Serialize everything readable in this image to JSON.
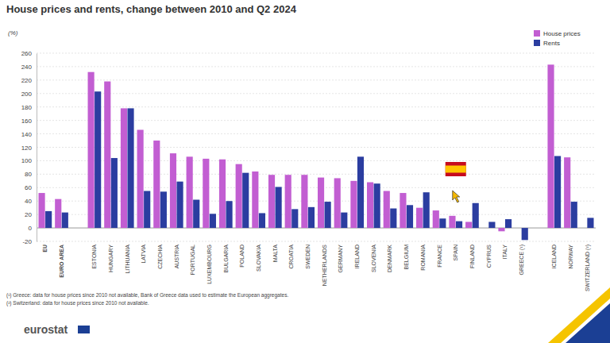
{
  "chart_data": {
    "type": "bar",
    "title": "House prices and rents, change between 2010 and Q2 2024",
    "y_label": "(%)",
    "categories": [
      "EU",
      "EURO AREA",
      null,
      "ESTONIA",
      "HUNGARY",
      "LITHUANIA",
      "LATVIA",
      "CZECHIA",
      "AUSTRIA",
      "PORTUGAL",
      "LUXEMBOURG",
      "BULGARIA",
      "POLAND",
      "SLOVAKIA",
      "MALTA",
      "CROATIA",
      "SWEDEN",
      "NETHERLANDS",
      "GERMANY",
      "IRELAND",
      "SLOVENIA",
      "DENMARK",
      "BELGIUM",
      "ROMANIA",
      "FRANCE",
      "SPAIN",
      "FINLAND",
      "CYPRUS",
      "ITALY",
      "GREECE (¹)",
      null,
      "ICELAND",
      "NORWAY",
      "SWITZERLAND (²)"
    ],
    "series": [
      {
        "name": "House prices",
        "color": "#c25ed2",
        "values": [
          52,
          43,
          null,
          232,
          218,
          178,
          146,
          130,
          111,
          106,
          103,
          102,
          95,
          84,
          79,
          79,
          79,
          75,
          74,
          70,
          68,
          55,
          52,
          30,
          26,
          18,
          9,
          null,
          -5,
          null,
          null,
          243,
          105,
          null
        ]
      },
      {
        "name": "Rents",
        "color": "#2b3da0",
        "values": [
          25,
          23,
          null,
          203,
          104,
          178,
          55,
          54,
          69,
          42,
          21,
          40,
          82,
          22,
          61,
          28,
          31,
          39,
          23,
          106,
          66,
          29,
          34,
          53,
          14,
          10,
          37,
          9,
          13,
          -18,
          null,
          107,
          39,
          15
        ]
      }
    ],
    "ylim": [
      -20,
      260
    ],
    "yticks": [
      -20,
      0,
      20,
      40,
      60,
      80,
      100,
      120,
      140,
      160,
      180,
      200,
      220,
      240,
      260
    ],
    "grid": true,
    "legend": "top-right",
    "annotations": [
      "(¹) Greece: data for house prices since 2010 not available, Bank of Greece data used to estimate the European aggregates.",
      "(²) Switzerland: data for house prices since 2010 not available."
    ],
    "source": "eurostat"
  }
}
